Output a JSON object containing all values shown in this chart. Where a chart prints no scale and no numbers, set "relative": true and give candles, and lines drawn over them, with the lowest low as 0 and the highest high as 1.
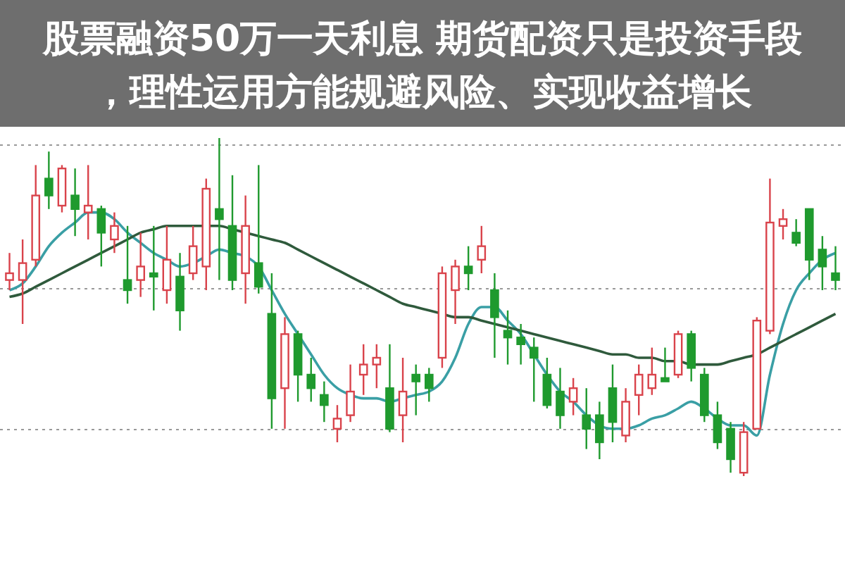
{
  "chart_data": {
    "type": "candlestick",
    "title": "股票融资50万一天利息 期货配资只是投资手段，理性运用方能规避风险、实现收益增长",
    "relative": true,
    "grid": true,
    "categories": [
      null,
      null,
      null,
      null,
      null,
      null,
      null,
      null,
      null,
      null,
      null,
      null,
      null,
      null,
      null,
      null,
      null,
      null,
      null,
      null,
      null,
      null,
      null,
      null,
      null,
      null,
      null,
      null,
      null,
      null,
      null,
      null,
      null,
      null,
      null,
      null,
      null,
      null,
      null,
      null,
      null,
      null,
      null,
      null,
      null,
      null,
      null,
      null,
      null,
      null,
      null,
      null,
      null,
      null,
      null,
      null,
      null,
      null,
      null,
      null,
      null,
      null,
      null,
      null
    ],
    "ohlc": [
      [
        0.58,
        0.66,
        0.55,
        0.6
      ],
      [
        0.58,
        0.7,
        0.45,
        0.63
      ],
      [
        0.64,
        0.92,
        0.62,
        0.83
      ],
      [
        0.88,
        0.96,
        0.79,
        0.83
      ],
      [
        0.8,
        0.92,
        0.78,
        0.91
      ],
      [
        0.83,
        0.91,
        0.71,
        0.79
      ],
      [
        0.78,
        0.92,
        0.7,
        0.8
      ],
      [
        0.79,
        0.8,
        0.62,
        0.72
      ],
      [
        0.7,
        0.78,
        0.66,
        0.74
      ],
      [
        0.58,
        0.74,
        0.51,
        0.55
      ],
      [
        0.58,
        0.72,
        0.53,
        0.62
      ],
      [
        0.6,
        0.74,
        0.49,
        0.59
      ],
      [
        0.55,
        0.74,
        0.51,
        0.64
      ],
      [
        0.59,
        0.66,
        0.43,
        0.49
      ],
      [
        0.6,
        0.74,
        0.58,
        0.68
      ],
      [
        0.62,
        0.88,
        0.55,
        0.85
      ],
      [
        0.79,
        1,
        0.58,
        0.76
      ],
      [
        0.74,
        0.89,
        0.55,
        0.58
      ],
      [
        0.6,
        0.83,
        0.51,
        0.74
      ],
      [
        0.63,
        0.92,
        0.54,
        0.56
      ],
      [
        0.48,
        0.6,
        0.14,
        0.23
      ],
      [
        0.26,
        0.47,
        0.14,
        0.42
      ],
      [
        0.42,
        0.43,
        0.22,
        0.3
      ],
      [
        0.3,
        0.35,
        0.22,
        0.26
      ],
      [
        0.24,
        0.28,
        0.16,
        0.21
      ],
      [
        0.14,
        0.21,
        0.1,
        0.17
      ],
      [
        0.18,
        0.33,
        0.16,
        0.25
      ],
      [
        0.3,
        0.39,
        0.24,
        0.33
      ],
      [
        0.33,
        0.39,
        0.26,
        0.35
      ],
      [
        0.26,
        0.39,
        0.13,
        0.14
      ],
      [
        0.18,
        0.35,
        0.1,
        0.25
      ],
      [
        0.3,
        0.33,
        0.18,
        0.28
      ],
      [
        0.3,
        0.32,
        0.22,
        0.26
      ],
      [
        0.35,
        0.62,
        0.32,
        0.6
      ],
      [
        0.55,
        0.64,
        0.45,
        0.62
      ],
      [
        0.62,
        0.68,
        0.55,
        0.6
      ],
      [
        0.64,
        0.74,
        0.6,
        0.68
      ],
      [
        0.55,
        0.6,
        0.35,
        0.47
      ],
      [
        0.43,
        0.49,
        0.33,
        0.41
      ],
      [
        0.41,
        0.45,
        0.33,
        0.39
      ],
      [
        0.38,
        0.41,
        0.22,
        0.35
      ],
      [
        0.3,
        0.35,
        0.2,
        0.21
      ],
      [
        0.25,
        0.32,
        0.14,
        0.18
      ],
      [
        0.22,
        0.29,
        0.18,
        0.26
      ],
      [
        0.18,
        0.26,
        0.08,
        0.14
      ],
      [
        0.18,
        0.22,
        0.05,
        0.1
      ],
      [
        0.26,
        0.33,
        0.1,
        0.16
      ],
      [
        0.12,
        0.26,
        0.1,
        0.22
      ],
      [
        0.24,
        0.33,
        0.18,
        0.3
      ],
      [
        0.26,
        0.38,
        0.24,
        0.3
      ],
      [
        0.29,
        0.38,
        0.28,
        0.28
      ],
      [
        0.3,
        0.43,
        0.29,
        0.42
      ],
      [
        0.42,
        0.43,
        0.28,
        0.32
      ],
      [
        0.3,
        0.32,
        0.16,
        0.18
      ],
      [
        0.18,
        0.22,
        0.08,
        0.1
      ],
      [
        0.14,
        0.16,
        0.01,
        0.05
      ],
      [
        0.01,
        0.16,
        0,
        0.13
      ],
      [
        0.14,
        0.47,
        0.14,
        0.46
      ],
      [
        0.43,
        0.88,
        0.42,
        0.75
      ],
      [
        0.74,
        0.79,
        0.7,
        0.76
      ],
      [
        0.72,
        0.76,
        0.68,
        0.69
      ],
      [
        0.79,
        0.79,
        0.58,
        0.64
      ],
      [
        0.67,
        0.71,
        0.55,
        0.62
      ],
      [
        0.6,
        0.68,
        0.55,
        0.58
      ]
    ],
    "series": [
      {
        "type": "line",
        "color": "#3a9fa5",
        "values": [
          0.55,
          0.57,
          0.62,
          0.68,
          0.72,
          0.75,
          0.78,
          0.78,
          0.76,
          0.72,
          0.69,
          0.66,
          0.64,
          0.62,
          0.63,
          0.65,
          0.67,
          0.66,
          0.65,
          0.62,
          0.55,
          0.48,
          0.42,
          0.36,
          0.3,
          0.26,
          0.24,
          0.23,
          0.23,
          0.22,
          0.23,
          0.24,
          0.25,
          0.28,
          0.35,
          0.45,
          0.5,
          0.5,
          0.46,
          0.42,
          0.36,
          0.3,
          0.25,
          0.22,
          0.18,
          0.15,
          0.14,
          0.14,
          0.15,
          0.17,
          0.18,
          0.2,
          0.22,
          0.2,
          0.17,
          0.15,
          0.15,
          0.12,
          0.3,
          0.45,
          0.55,
          0.6,
          0.64,
          0.66
        ]
      },
      {
        "type": "line",
        "color": "#2f5a3c",
        "values": [
          0.53,
          0.54,
          0.56,
          0.58,
          0.6,
          0.62,
          0.64,
          0.66,
          0.68,
          0.7,
          0.72,
          0.73,
          0.74,
          0.74,
          0.74,
          0.74,
          0.74,
          0.73,
          0.72,
          0.71,
          0.7,
          0.69,
          0.67,
          0.65,
          0.63,
          0.61,
          0.59,
          0.57,
          0.55,
          0.53,
          0.51,
          0.5,
          0.49,
          0.48,
          0.47,
          0.47,
          0.46,
          0.45,
          0.44,
          0.43,
          0.42,
          0.41,
          0.4,
          0.39,
          0.38,
          0.37,
          0.36,
          0.36,
          0.35,
          0.35,
          0.34,
          0.34,
          0.33,
          0.33,
          0.33,
          0.34,
          0.35,
          0.36,
          0.38,
          0.4,
          0.42,
          0.44,
          0.46,
          0.48
        ]
      }
    ]
  }
}
